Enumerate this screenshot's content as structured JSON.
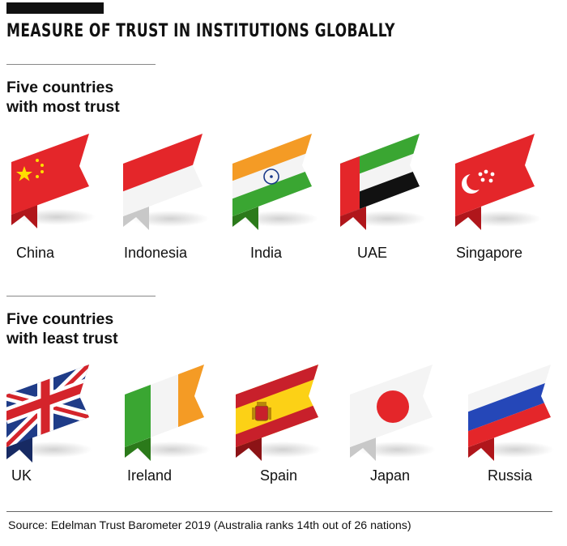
{
  "title": "MEASURE OF TRUST IN INSTITUTIONS GLOBALLY",
  "most_trust": {
    "heading_line1": "Five countries",
    "heading_line2": "with most trust",
    "countries": [
      "China",
      "Indonesia",
      "India",
      "UAE",
      "Singapore"
    ]
  },
  "least_trust": {
    "heading_line1": "Five countries",
    "heading_line2": "with least trust",
    "countries": [
      "UK",
      "Ireland",
      "Spain",
      "Japan",
      "Russia"
    ]
  },
  "source": "Source: Edelman Trust Barometer 2019 (Australia ranks 14th out of 26 nations)"
}
